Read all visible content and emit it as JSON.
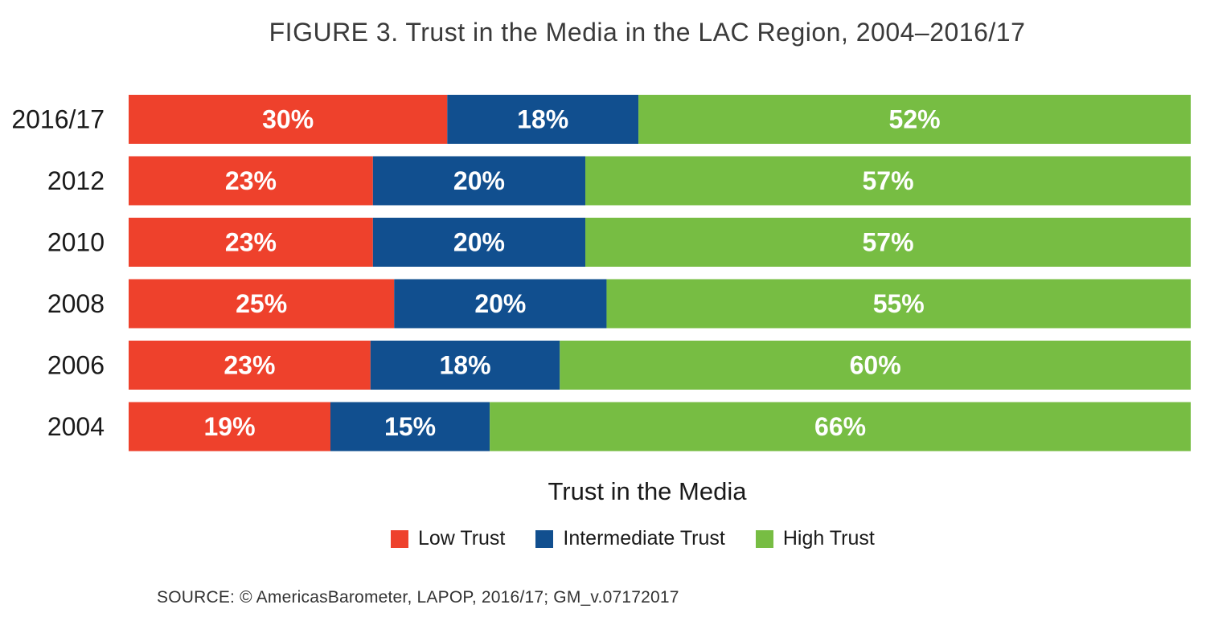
{
  "title": "FIGURE 3. Trust in the Media in the LAC Region, 2004–2016/17",
  "legend_title": "Trust in the Media",
  "source": "SOURCE: © AmericasBarometer, LAPOP, 2016/17; GM_v.07172017",
  "chart_data": {
    "type": "bar",
    "orientation": "horizontal",
    "stacked": true,
    "normalized": true,
    "categories": [
      "2016/17",
      "2012",
      "2010",
      "2008",
      "2006",
      "2004"
    ],
    "series": [
      {
        "name": "Low Trust",
        "color": "#ee412c",
        "values": [
          30,
          23,
          23,
          25,
          23,
          19
        ],
        "labels": [
          "30%",
          "23%",
          "23%",
          "25%",
          "23%",
          "19%"
        ]
      },
      {
        "name": "Intermediate Trust",
        "color": "#114f8f",
        "values": [
          18,
          20,
          20,
          20,
          18,
          15
        ],
        "labels": [
          "18%",
          "20%",
          "20%",
          "20%",
          "18%",
          "15%"
        ]
      },
      {
        "name": "High Trust",
        "color": "#77bd43",
        "values": [
          52,
          57,
          57,
          55,
          60,
          66
        ],
        "labels": [
          "52%",
          "57%",
          "57%",
          "55%",
          "60%",
          "66%"
        ]
      }
    ],
    "legend_position": "bottom",
    "grid": false
  }
}
